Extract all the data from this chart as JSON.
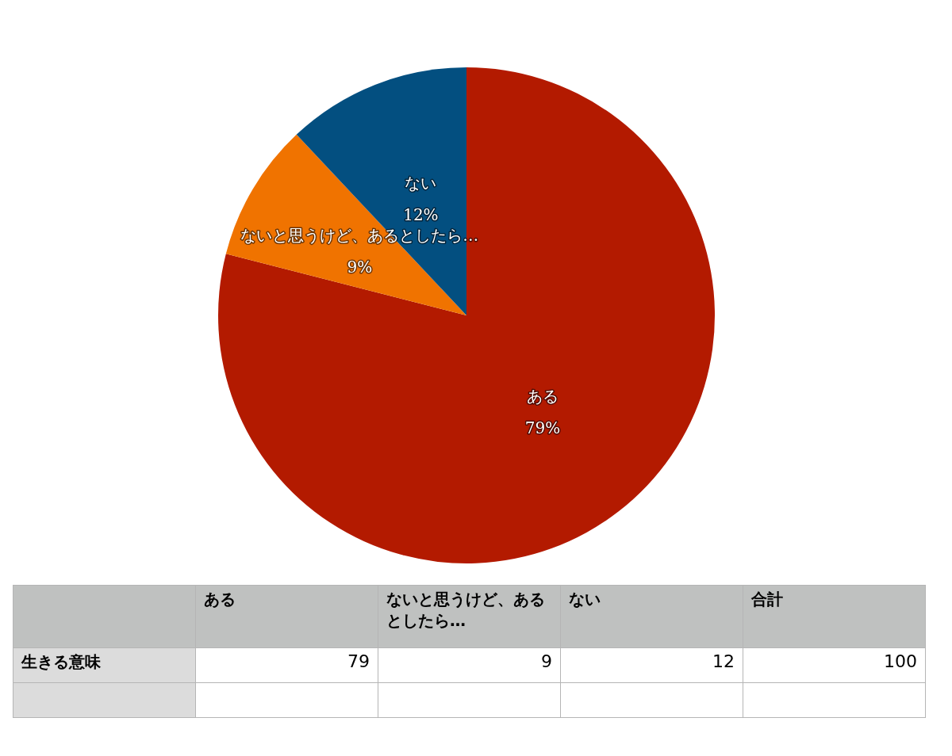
{
  "chart_data": {
    "type": "pie",
    "categories": [
      "ある",
      "ないと思うけど、あるとしたら…",
      "ない"
    ],
    "values": [
      79,
      9,
      12
    ],
    "colors": [
      "#b31a00",
      "#f07300",
      "#034f80"
    ],
    "value_labels": [
      "79%",
      "9%",
      "12%"
    ],
    "totals": [
      "100"
    ],
    "annotations": [
      "生きる意味",
      "合計",
      "79",
      "9",
      "12"
    ],
    "legend": false
  }
}
